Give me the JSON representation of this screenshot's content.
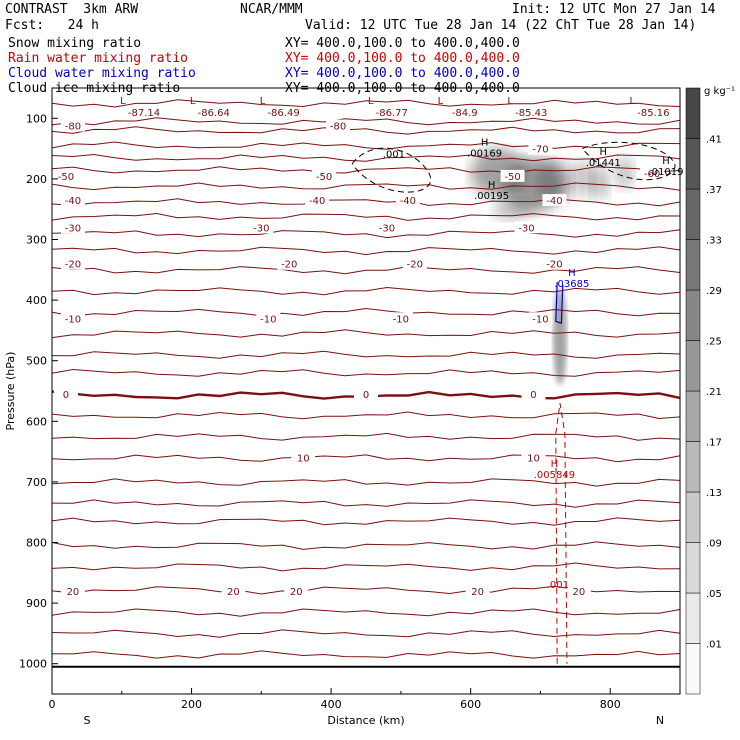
{
  "header": {
    "model": "CONTRAST  3km ARW",
    "center": "NCAR/MMM",
    "init": "Init: 12 UTC Mon 27 Jan 14",
    "fcst": "Fcst:   24 h",
    "valid": "Valid: 12 UTC Tue 28 Jan 14 (22 ChT Tue 28 Jan 14)",
    "fields": [
      {
        "name": "Snow mixing ratio",
        "xy": "XY= 400.0,100.0 to 400.0,400.0",
        "color": "#000000"
      },
      {
        "name": "Rain water mixing ratio",
        "xy": "XY= 400.0,100.0 to 400.0,400.0",
        "color": "#cc0000"
      },
      {
        "name": "Cloud water mixing ratio",
        "xy": "XY= 400.0,100.0 to 400.0,400.0",
        "color": "#0000cc"
      },
      {
        "name": "Cloud ice mixing ratio",
        "xy": "XY= 400.0,100.0 to 400.0,400.0",
        "color": "#000000"
      }
    ]
  },
  "chart_data": {
    "type": "cross-section",
    "xlabel": "Distance (km)",
    "ylabel": "Pressure (hPa)",
    "xlim": [
      0,
      900
    ],
    "ylim": [
      1050,
      50
    ],
    "x_ticks": [
      0,
      200,
      400,
      600,
      800
    ],
    "y_ticks": [
      100,
      200,
      300,
      400,
      500,
      600,
      700,
      800,
      900,
      1000
    ],
    "x_end_labels": {
      "left": "S",
      "right": "N"
    },
    "temperature_isotherms_C": [
      {
        "value": -80,
        "label_x": [
          30,
          410
        ],
        "p": 112
      },
      {
        "value": -70,
        "label_x": [
          700
        ],
        "p": 150
      },
      {
        "value": -60,
        "label_x": [
          860
        ],
        "p": 190
      },
      {
        "value": -50,
        "label_x": [
          20,
          390,
          660
        ],
        "p": 195
      },
      {
        "value": -40,
        "label_x": [
          30,
          380,
          510,
          720
        ],
        "p": 235
      },
      {
        "value": -30,
        "label_x": [
          30,
          300,
          480,
          680
        ],
        "p": 280
      },
      {
        "value": -20,
        "label_x": [
          30,
          340,
          520,
          720
        ],
        "p": 340
      },
      {
        "value": -10,
        "label_x": [
          30,
          310,
          500,
          700
        ],
        "p": 430
      },
      {
        "value": 0,
        "label_x": [
          20,
          450,
          690
        ],
        "p": 555
      },
      {
        "value": 10,
        "label_x": [
          360,
          690
        ],
        "p": 660
      },
      {
        "value": 20,
        "label_x": [
          30,
          260,
          350,
          610,
          755
        ],
        "p": 880
      }
    ],
    "pressure_min_labels": [
      {
        "x": 155,
        "value": "-87.14"
      },
      {
        "x": 255,
        "value": "-86.64"
      },
      {
        "x": 355,
        "value": "-86.49"
      },
      {
        "x": 510,
        "value": "-86.77"
      },
      {
        "x": 610,
        "value": "-84.9"
      },
      {
        "x": 710,
        "value": "-85.43"
      },
      {
        "x": 885,
        "value": "-85.16"
      }
    ],
    "maxima": [
      {
        "label": "H",
        "value": ".00169",
        "x": 620,
        "p": 160,
        "color": "#000000"
      },
      {
        "label": "H",
        "value": ".00195",
        "x": 630,
        "p": 230,
        "color": "#000000"
      },
      {
        "label": "H",
        "value": ".01441",
        "x": 790,
        "p": 175,
        "color": "#000000"
      },
      {
        "label": "H",
        "value": ".01019",
        "x": 880,
        "p": 190,
        "color": "#000000"
      },
      {
        "label": "H",
        "value": ".03685",
        "x": 745,
        "p": 375,
        "color": "#0000cc"
      },
      {
        "label": "H",
        "value": ".005849",
        "x": 720,
        "p": 690,
        "color": "#cc0000"
      }
    ],
    "contour_labels": [
      {
        "value": ".001",
        "x": 490,
        "p": 165,
        "color": "#000000"
      },
      {
        "value": ".001",
        "x": 725,
        "p": 875,
        "color": "#cc0000"
      }
    ],
    "colorbar": {
      "units": "g kg⁻¹",
      "levels": [
        ".01",
        ".05",
        ".09",
        ".13",
        ".17",
        ".21",
        ".25",
        ".29",
        ".33",
        ".37",
        ".41"
      ]
    }
  }
}
